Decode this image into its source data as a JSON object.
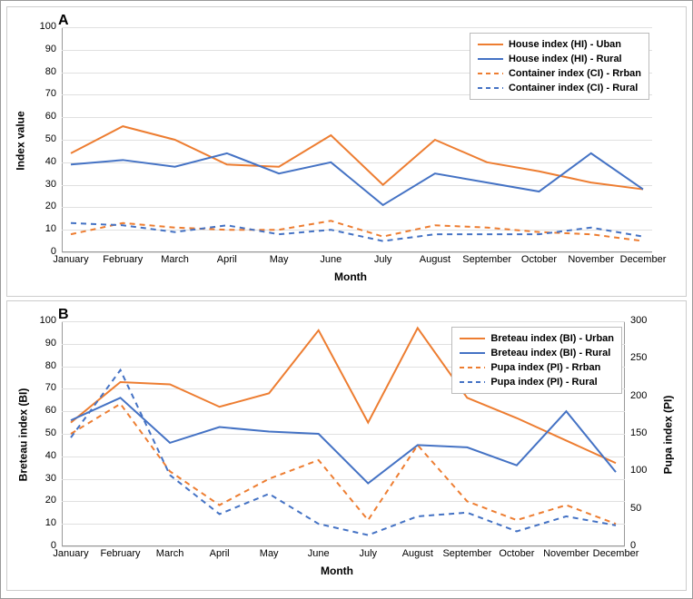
{
  "months": [
    "January",
    "February",
    "March",
    "April",
    "May",
    "June",
    "July",
    "August",
    "September",
    "October",
    "November",
    "December"
  ],
  "axis_label_month": "Month",
  "colors": {
    "urban": "#ed7d31",
    "rural": "#4472c4",
    "grid": "#e0e0e0",
    "axis": "#999999",
    "legend_border": "#bbbbbb",
    "background": "#ffffff"
  },
  "panelA": {
    "label": "A",
    "ylabel": "Index value",
    "ylim": [
      0,
      100
    ],
    "ytick_step": 10,
    "legend": [
      {
        "label": "House index (HI) - Uban",
        "color": "#ed7d31",
        "dash": false
      },
      {
        "label": "House index (HI) - Rural",
        "color": "#4472c4",
        "dash": false
      },
      {
        "label": "Container index (CI) - Rrban",
        "color": "#ed7d31",
        "dash": true
      },
      {
        "label": "Container index (CI) - Rural",
        "color": "#4472c4",
        "dash": true
      }
    ],
    "series": {
      "HI_urban": {
        "color": "#ed7d31",
        "dash": false,
        "values": [
          44,
          56,
          50,
          39,
          38,
          52,
          30,
          50,
          40,
          36,
          31,
          28
        ]
      },
      "HI_rural": {
        "color": "#4472c4",
        "dash": false,
        "values": [
          39,
          41,
          38,
          44,
          35,
          40,
          21,
          35,
          31,
          27,
          44,
          28
        ]
      },
      "CI_urban": {
        "color": "#ed7d31",
        "dash": true,
        "values": [
          8,
          13,
          11,
          10,
          10,
          14,
          7,
          12,
          11,
          9,
          8,
          5
        ]
      },
      "CI_rural": {
        "color": "#4472c4",
        "dash": true,
        "values": [
          13,
          12,
          9,
          12,
          8,
          10,
          5,
          8,
          8,
          8,
          11,
          7
        ]
      }
    }
  },
  "panelB": {
    "label": "B",
    "ylabel_left": "Breteau index (BI)",
    "ylabel_right": "Pupa index (PI)",
    "ylim_left": [
      0,
      100
    ],
    "ytick_step_left": 10,
    "ylim_right": [
      0,
      300
    ],
    "ytick_step_right": 50,
    "legend": [
      {
        "label": "Breteau index (BI) - Urban",
        "color": "#ed7d31",
        "dash": false
      },
      {
        "label": "Breteau index (BI) - Rural",
        "color": "#4472c4",
        "dash": false
      },
      {
        "label": "Pupa index (PI) - Rrban",
        "color": "#ed7d31",
        "dash": true
      },
      {
        "label": "Pupa index (PI) - Rural",
        "color": "#4472c4",
        "dash": true
      }
    ],
    "series_left": {
      "BI_urban": {
        "color": "#ed7d31",
        "dash": false,
        "values": [
          55,
          73,
          72,
          62,
          68,
          96,
          55,
          97,
          66,
          57,
          47,
          37
        ]
      },
      "BI_rural": {
        "color": "#4472c4",
        "dash": false,
        "values": [
          56,
          66,
          46,
          53,
          51,
          50,
          28,
          45,
          44,
          36,
          60,
          33
        ]
      }
    },
    "series_right": {
      "PI_urban": {
        "color": "#ed7d31",
        "dash": true,
        "values": [
          150,
          190,
          100,
          55,
          90,
          115,
          35,
          135,
          60,
          35,
          55,
          30
        ]
      },
      "PI_rural": {
        "color": "#4472c4",
        "dash": true,
        "values": [
          145,
          235,
          95,
          43,
          70,
          30,
          15,
          40,
          45,
          20,
          40,
          28
        ]
      }
    }
  },
  "typography": {
    "panel_label_fontsize": 16,
    "axis_label_fontsize": 12,
    "tick_fontsize": 11,
    "legend_fontsize": 11,
    "font_family": "Arial"
  },
  "line_width": 2
}
